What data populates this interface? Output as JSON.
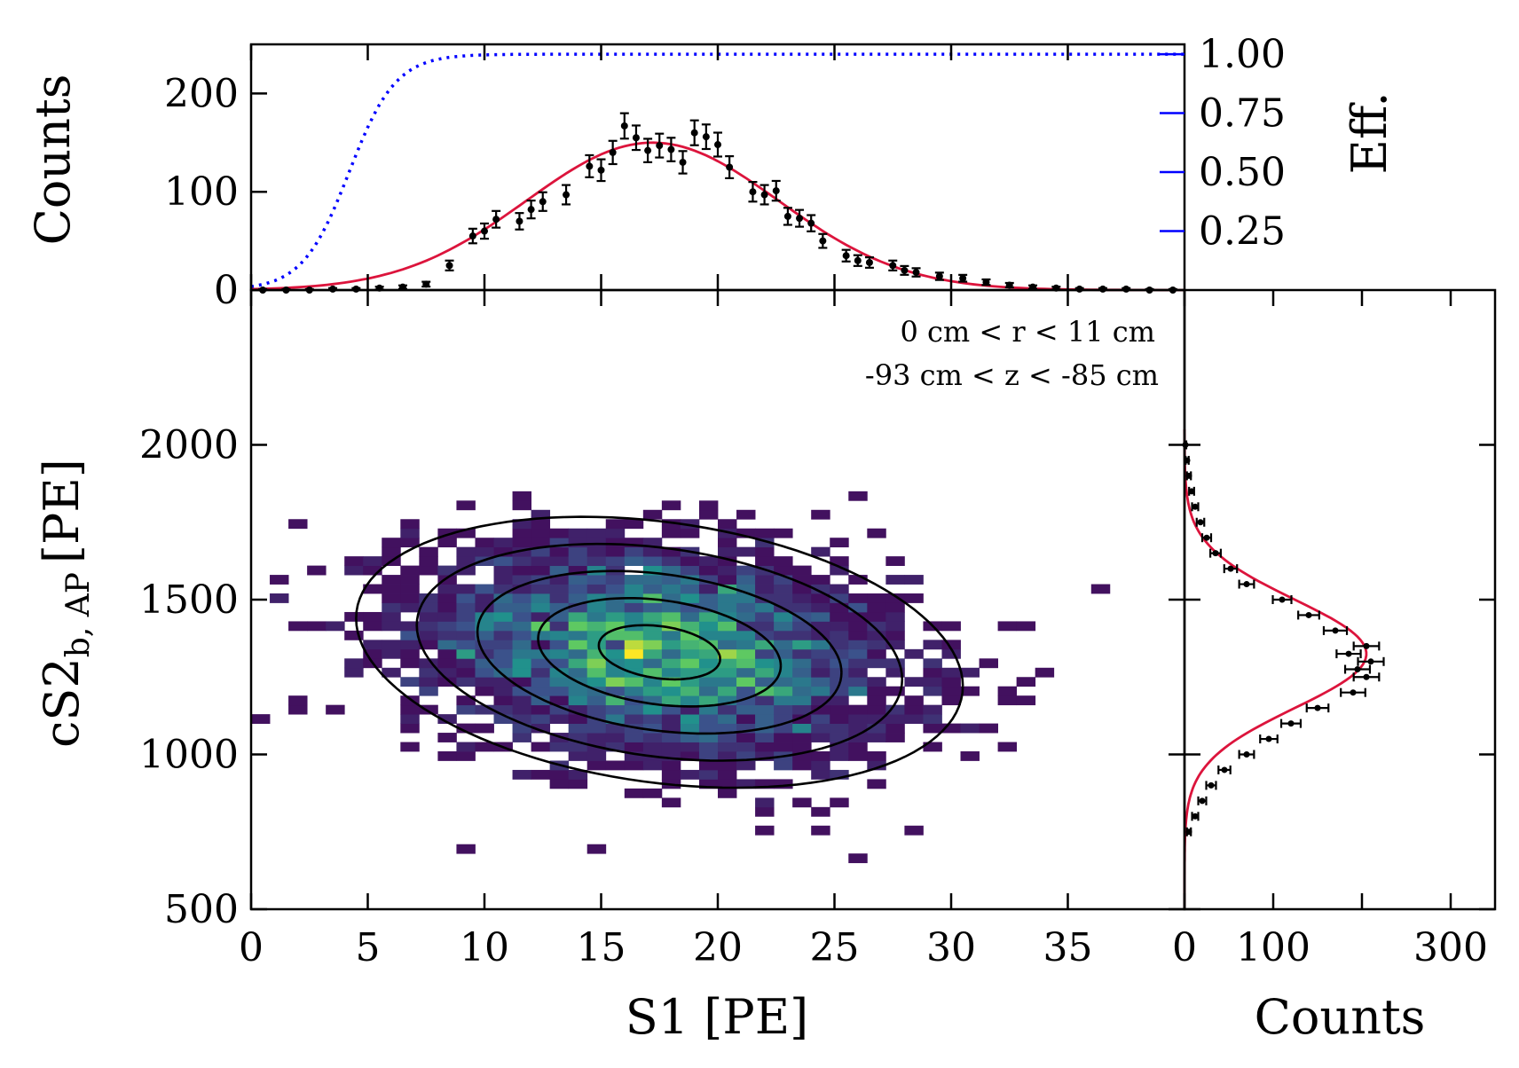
{
  "chart_data": [
    {
      "panel": "top",
      "type": "scatter",
      "title": "",
      "ylabel": "Counts",
      "xlim": [
        0,
        40
      ],
      "ylim": [
        0,
        250
      ],
      "yticks": [
        "0",
        "100",
        "200"
      ],
      "data": {
        "x": [
          0.5,
          1.5,
          2.5,
          3.5,
          4.5,
          5.5,
          6.5,
          7.5,
          8.5,
          9.5,
          10.0,
          10.5,
          11.5,
          12.0,
          12.5,
          13.5,
          14.5,
          15.0,
          15.5,
          16.0,
          16.5,
          17.0,
          17.5,
          18.0,
          18.5,
          19.0,
          19.5,
          20.0,
          20.5,
          21.5,
          22.0,
          22.5,
          23.0,
          23.5,
          24.0,
          24.5,
          25.5,
          26.0,
          26.5,
          27.5,
          28.0,
          28.5,
          29.5,
          30.5,
          31.5,
          32.5,
          33.5,
          34.5,
          35.5,
          36.5,
          37.5,
          38.5,
          39.5
        ],
        "y": [
          0,
          0,
          0,
          1,
          1,
          2,
          3,
          6,
          25,
          55,
          60,
          72,
          70,
          82,
          90,
          97,
          126,
          122,
          140,
          167,
          155,
          142,
          147,
          143,
          130,
          160,
          156,
          148,
          125,
          100,
          97,
          101,
          75,
          73,
          68,
          50,
          35,
          30,
          28,
          25,
          20,
          18,
          14,
          12,
          8,
          5,
          3,
          2,
          1,
          1,
          1,
          0,
          0
        ],
        "model": "gaussian fit",
        "model_color": "#dc143c"
      },
      "efficiency": {
        "label": "Eff.",
        "yticks": [
          "0.25",
          "0.50",
          "0.75",
          "1.00"
        ],
        "ylim": [
          0,
          1.0
        ],
        "color": "#0000ff",
        "style": "dotted"
      }
    },
    {
      "panel": "main",
      "type": "heatmap",
      "xlabel": "S1 [PE]",
      "ylabel_main": "cS2",
      "ylabel_sub": "b, AP",
      "ylabel_unit": "[PE]",
      "xlim": [
        0,
        40
      ],
      "ylim": [
        500,
        2500
      ],
      "xticks": [
        "0",
        "5",
        "10",
        "15",
        "20",
        "25",
        "30",
        "35"
      ],
      "yticks": [
        "500",
        "1000",
        "1500",
        "2000"
      ],
      "annotations": [
        "0 cm < r <  11 cm",
        "-93 cm < z < -85 cm"
      ],
      "distribution": {
        "center_s1": 17.5,
        "center_cs2": 1330,
        "sigma_s1": 5.2,
        "sigma_cs2": 175,
        "correlation": -0.25,
        "events": 3000
      },
      "contour_levels": [
        0.5,
        1.0,
        1.5,
        2.0,
        2.5
      ],
      "colormap": "viridis"
    },
    {
      "panel": "right",
      "type": "scatter",
      "xlabel": "Counts",
      "xlim": [
        0,
        350
      ],
      "xticks": [
        "0",
        "100",
        "300"
      ],
      "data": {
        "cs2": [
          750,
          800,
          850,
          900,
          950,
          1000,
          1050,
          1100,
          1150,
          1200,
          1250,
          1275,
          1300,
          1325,
          1350,
          1400,
          1450,
          1500,
          1550,
          1600,
          1650,
          1700,
          1750,
          1800,
          1850,
          1900,
          1950,
          2000
        ],
        "counts": [
          5,
          12,
          20,
          30,
          45,
          70,
          95,
          120,
          150,
          190,
          205,
          195,
          210,
          185,
          205,
          170,
          140,
          110,
          70,
          52,
          35,
          25,
          18,
          12,
          8,
          5,
          3,
          1
        ],
        "model": "gaussian fit",
        "model_color": "#dc143c"
      }
    }
  ]
}
